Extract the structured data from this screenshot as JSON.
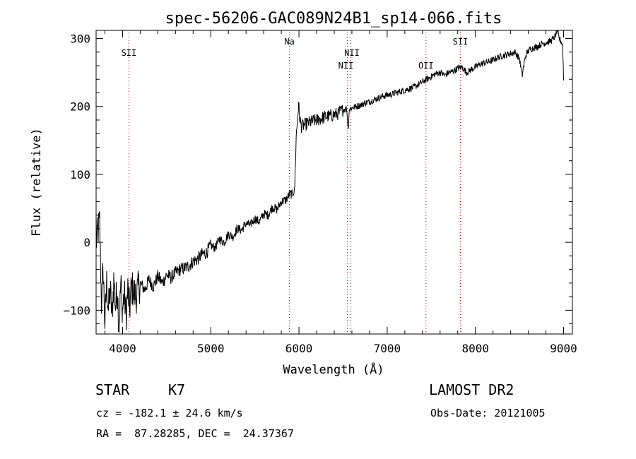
{
  "chart_data": {
    "type": "line",
    "title": "spec-56206-GAC089N24B1_sp14-066.fits",
    "xlabel": "Wavelength (Å)",
    "ylabel": "Flux (relative)",
    "xlim": [
      3700,
      9100
    ],
    "ylim": [
      -135,
      312
    ],
    "x_ticks": [
      4000,
      5000,
      6000,
      7000,
      8000,
      9000
    ],
    "y_ticks": [
      -100,
      0,
      100,
      200,
      300
    ],
    "grid": false,
    "series": [
      {
        "color": "#000000",
        "x": [
          3700,
          3740,
          3760,
          3780,
          3800,
          3820,
          3840,
          3860,
          3880,
          3900,
          3920,
          3940,
          3960,
          3980,
          4000,
          4020,
          4040,
          4060,
          4080,
          4100,
          4150,
          4200,
          4250,
          4300,
          4350,
          4400,
          4450,
          4500,
          4550,
          4600,
          4650,
          4700,
          4750,
          4800,
          4850,
          4900,
          4950,
          5000,
          5050,
          5100,
          5150,
          5200,
          5250,
          5300,
          5350,
          5400,
          5450,
          5500,
          5550,
          5600,
          5650,
          5700,
          5750,
          5800,
          5850,
          5880,
          5900,
          5920,
          5940,
          5950,
          5960,
          5970,
          5980,
          5990,
          6000,
          6010,
          6030,
          6050,
          6100,
          6150,
          6200,
          6250,
          6300,
          6350,
          6400,
          6450,
          6500,
          6540,
          6550,
          6560,
          6565,
          6570,
          6600,
          6650,
          6700,
          6750,
          6800,
          6850,
          6900,
          6950,
          7000,
          7050,
          7100,
          7150,
          7200,
          7250,
          7300,
          7350,
          7400,
          7450,
          7500,
          7550,
          7600,
          7650,
          7700,
          7750,
          7800,
          7850,
          7900,
          7950,
          8000,
          8050,
          8100,
          8150,
          8200,
          8250,
          8300,
          8350,
          8400,
          8450,
          8500,
          8530,
          8550,
          8570,
          8600,
          8650,
          8700,
          8750,
          8800,
          8850,
          8900,
          8930,
          8950,
          8970,
          8990,
          9000
        ],
        "y": [
          0,
          30,
          -90,
          -40,
          -120,
          -60,
          -100,
          -70,
          -110,
          -55,
          -95,
          -65,
          -130,
          -60,
          -100,
          -75,
          -110,
          -70,
          -100,
          -65,
          -80,
          -60,
          -70,
          -55,
          -65,
          -50,
          -60,
          -48,
          -52,
          -45,
          -40,
          -38,
          -35,
          -28,
          -25,
          -18,
          -15,
          -5,
          -8,
          5,
          0,
          12,
          8,
          20,
          18,
          28,
          25,
          35,
          30,
          42,
          40,
          52,
          48,
          60,
          62,
          68,
          72,
          70,
          75,
          74,
          120,
          160,
          175,
          195,
          200,
          180,
          170,
          172,
          175,
          178,
          180,
          182,
          185,
          186,
          188,
          190,
          195,
          197,
          180,
          165,
          190,
          196,
          198,
          200,
          202,
          205,
          207,
          210,
          212,
          215,
          217,
          218,
          220,
          222,
          224,
          226,
          228,
          232,
          236,
          240,
          244,
          248,
          250,
          246,
          250,
          252,
          256,
          258,
          250,
          254,
          258,
          262,
          264,
          266,
          268,
          272,
          274,
          276,
          278,
          280,
          270,
          245,
          262,
          275,
          282,
          286,
          288,
          292,
          294,
          296,
          302,
          312,
          300,
          296,
          290,
          240
        ]
      }
    ],
    "lines": [
      {
        "x": 4072,
        "label": "SII"
      },
      {
        "x": 5892,
        "label": "Na"
      },
      {
        "x": 6548,
        "label": "NII"
      },
      {
        "x": 6584,
        "label": "NII"
      },
      {
        "x": 7440,
        "label": "OII"
      },
      {
        "x": 7830,
        "label": "SII"
      }
    ]
  },
  "info": {
    "object_class": "STAR",
    "subclass": "K7",
    "survey": "LAMOST DR2",
    "redshift_text": "cz = -182.1 ± 24.6 km/s",
    "obs_date_text": "Obs-Date: 20121005",
    "coords_text": "RA =  87.28285, DEC =  24.37367"
  }
}
